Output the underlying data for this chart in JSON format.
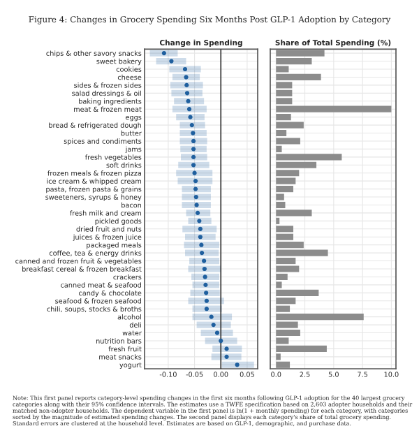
{
  "chart_data": [
    {
      "type": "scatter",
      "orientation": "horizontal",
      "title": "Change in Spending",
      "categories": [
        "chips & other savory snacks",
        "sweet bakery",
        "cookies",
        "cheese",
        "sides & frozen sides",
        "salad dressings & oil",
        "baking ingredients",
        "meat & frozen meat",
        "eggs",
        "bread & refrigerated dough",
        "butter",
        "spices and condiments",
        "jams",
        "fresh vegetables",
        "soft drinks",
        "frozen meals & frozen pizza",
        "ice cream & whipped cream",
        "pasta, frozen pasta & grains",
        "sweeteners, syrups & honey",
        "bacon",
        "fresh milk and cream",
        "pickled goods",
        "dried fruit and nuts",
        "juices & frozen juice",
        "packaged meals",
        "coffee, tea & energy drinks",
        "canned and frozen fruit & vegetables",
        "breakfast cereal & frozen breakfast",
        "crackers",
        "canned meat & seafood",
        "candy & chocolate",
        "seafood & frozen seafood",
        "chili, soups, stocks & broths",
        "alcohol",
        "deli",
        "water",
        "nutrition bars",
        "fresh fruit",
        "meat snacks",
        "yogurt"
      ],
      "series": [
        {
          "color": "#1f5f9e",
          "values": [
            -0.108,
            -0.094,
            -0.068,
            -0.066,
            -0.065,
            -0.064,
            -0.062,
            -0.06,
            -0.058,
            -0.055,
            -0.053,
            -0.052,
            -0.052,
            -0.052,
            -0.052,
            -0.05,
            -0.048,
            -0.048,
            -0.047,
            -0.046,
            -0.044,
            -0.041,
            -0.039,
            -0.039,
            -0.037,
            -0.036,
            -0.032,
            -0.031,
            -0.03,
            -0.029,
            -0.028,
            -0.027,
            -0.027,
            -0.018,
            -0.014,
            -0.007,
            0.0,
            0.011,
            0.011,
            0.031
          ],
          "errors": [
            [
              -0.135,
              -0.082
            ],
            [
              -0.123,
              -0.066
            ],
            [
              -0.098,
              -0.038
            ],
            [
              -0.092,
              -0.04
            ],
            [
              -0.096,
              -0.034
            ],
            [
              -0.094,
              -0.035
            ],
            [
              -0.089,
              -0.032
            ],
            [
              -0.092,
              -0.027
            ],
            [
              -0.085,
              -0.031
            ],
            [
              -0.078,
              -0.03
            ],
            [
              -0.078,
              -0.027
            ],
            [
              -0.078,
              -0.026
            ],
            [
              -0.077,
              -0.027
            ],
            [
              -0.076,
              -0.026
            ],
            [
              -0.081,
              -0.022
            ],
            [
              -0.085,
              -0.016
            ],
            [
              -0.082,
              -0.016
            ],
            [
              -0.074,
              -0.019
            ],
            [
              -0.074,
              -0.019
            ],
            [
              -0.074,
              -0.019
            ],
            [
              -0.066,
              -0.02
            ],
            [
              -0.062,
              -0.018
            ],
            [
              -0.073,
              -0.008
            ],
            [
              -0.068,
              -0.01
            ],
            [
              -0.07,
              -0.003
            ],
            [
              -0.068,
              -0.004
            ],
            [
              -0.06,
              -0.003
            ],
            [
              -0.062,
              0.001
            ],
            [
              -0.056,
              -0.003
            ],
            [
              -0.054,
              -0.003
            ],
            [
              -0.058,
              -0.002
            ],
            [
              -0.062,
              0.006
            ],
            [
              -0.054,
              0.002
            ],
            [
              -0.054,
              0.021
            ],
            [
              -0.046,
              0.019
            ],
            [
              -0.038,
              0.023
            ],
            [
              -0.03,
              0.031
            ],
            [
              -0.016,
              0.04
            ],
            [
              -0.018,
              0.039
            ],
            [
              0.002,
              0.063
            ]
          ]
        }
      ],
      "xlim": [
        -0.145,
        0.07
      ],
      "xticks": [
        {
          "value": -0.1,
          "label": "-0.10"
        },
        {
          "value": -0.05,
          "label": "-0.05"
        },
        {
          "value": 0,
          "label": "0.00"
        },
        {
          "value": 0.05,
          "label": "0.05"
        }
      ],
      "ref_lines": [
        {
          "axis": "x",
          "value": 0,
          "color": "#333333"
        }
      ],
      "marker": "circle",
      "grid": true,
      "annotations": [
        "Figure 4: Changes in Grocery Spending Six Months Post GLP-1 Adoption by Category",
        "Note: This first panel reports category-level spending changes in the first six months following GLP-1 adoption for the 40 largest grocery categories along with their 95% confidence intervals. The estimates use a TWFE specification based on 2,603 adopter households and their matched non-adopter households. The dependent variable in the first panel is ln(1 + monthly spending) for each category, with categories sorted by the magnitude of estimated spending changes. The second panel displays each category's share of total grocery spending. Standard errors are clustered at the household level. Estimates are based on GLP-1, demographic, and purchase data."
      ]
    },
    {
      "type": "bar",
      "orientation": "horizontal",
      "title": "Share of Total Spending (%)",
      "categories": [
        null,
        null,
        null,
        null,
        null,
        null,
        null,
        null,
        null,
        null,
        null,
        null,
        null,
        null,
        null,
        null,
        null,
        null,
        null,
        null,
        null,
        null,
        null,
        null,
        null,
        null,
        null,
        null,
        null,
        null,
        null,
        null,
        null,
        null,
        null,
        null,
        null,
        null,
        null,
        null
      ],
      "series": [
        {
          "color": "#8c8c8c",
          "values": [
            4.2,
            3.1,
            1.1,
            3.9,
            1.4,
            1.4,
            1.4,
            10.0,
            1.3,
            2.4,
            0.9,
            2.1,
            0.5,
            5.7,
            3.5,
            2.0,
            1.7,
            1.5,
            0.7,
            0.8,
            3.1,
            0.3,
            1.5,
            1.5,
            2.4,
            4.5,
            1.7,
            2.0,
            1.0,
            0.5,
            3.7,
            1.7,
            1.2,
            7.6,
            1.9,
            2.1,
            1.1,
            4.4,
            0.4,
            1.2
          ]
        }
      ],
      "xlim": [
        -0.5,
        10.4
      ],
      "xticks": [
        {
          "value": 0,
          "label": "0.0"
        },
        2.5,
        {
          "value": 5,
          "label": "5.0"
        },
        7.5,
        {
          "value": 10,
          "label": "10.0"
        }
      ],
      "tick_labels": "x",
      "grid": true
    }
  ]
}
